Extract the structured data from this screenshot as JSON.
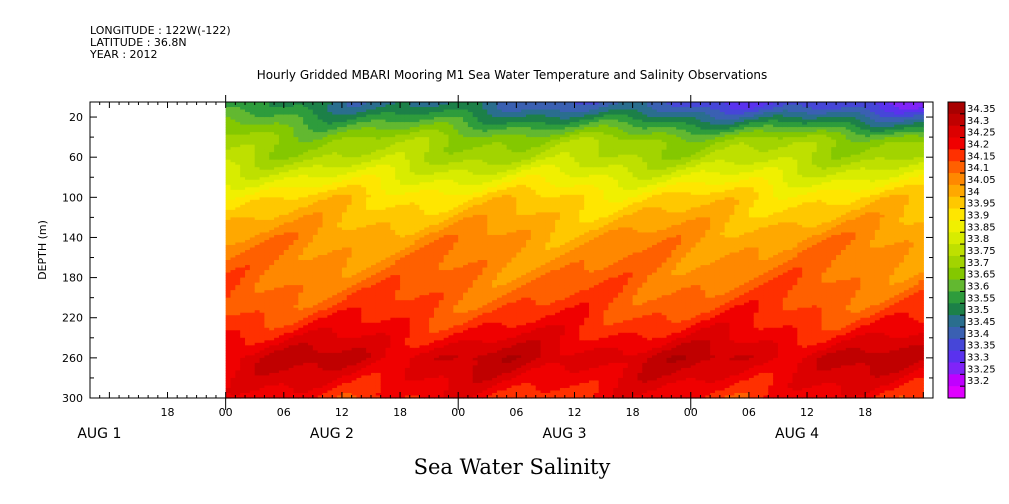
{
  "header": {
    "longitude": "LONGITUDE : 122W(-122)",
    "latitude": "LATITUDE : 36.8N",
    "year": "YEAR : 2012"
  },
  "chart_data": {
    "type": "heatmap",
    "title": "Hourly Gridded MBARI Mooring M1 Sea Water Temperature and Salinity Observations",
    "variable_title": "Sea Water Salinity",
    "ylabel": "DEPTH (m)",
    "y_ticks": [
      "20",
      "60",
      "100",
      "140",
      "180",
      "220",
      "260",
      "300"
    ],
    "y_tick_values": [
      20,
      60,
      100,
      140,
      180,
      220,
      260,
      300
    ],
    "ylim": [
      5,
      300
    ],
    "y_inverted": true,
    "x_hour_ticks": [
      "18",
      "00",
      "06",
      "12",
      "18",
      "00",
      "06",
      "12",
      "18",
      "00",
      "06",
      "12",
      "18"
    ],
    "x_hour_values": [
      -6,
      0,
      6,
      12,
      18,
      24,
      30,
      36,
      42,
      48,
      54,
      60,
      66
    ],
    "x_day_labels": [
      "AUG  1",
      "AUG  2",
      "AUG  3",
      "AUG  4"
    ],
    "x_day_values": [
      -12,
      12,
      36,
      60
    ],
    "xlim_hours": [
      -14,
      73
    ],
    "data_start_hours": 0,
    "data_end_hours": 72,
    "colorbar": {
      "labels": [
        "34.35",
        "34.3",
        "34.25",
        "34.2",
        "34.15",
        "34.1",
        "34.05",
        "34",
        "33.95",
        "33.9",
        "33.85",
        "33.8",
        "33.75",
        "33.7",
        "33.65",
        "33.6",
        "33.55",
        "33.5",
        "33.45",
        "33.4",
        "33.35",
        "33.3",
        "33.25",
        "33.2"
      ],
      "colors": [
        "#a80000",
        "#c00000",
        "#dc0000",
        "#f00000",
        "#ff3000",
        "#ff6000",
        "#ff8800",
        "#ffa800",
        "#ffc800",
        "#ffe600",
        "#f0f000",
        "#d8ec00",
        "#bee000",
        "#a2d400",
        "#84c800",
        "#62b830",
        "#2e9c3c",
        "#1c8048",
        "#2a6e8e",
        "#3a60b2",
        "#4646d8",
        "#5a32ee",
        "#8024f8",
        "#c000ff",
        "#e000ff"
      ]
    },
    "depth_profile": [
      {
        "depth": 10,
        "value": 33.55
      },
      {
        "depth": 20,
        "value": 33.6
      },
      {
        "depth": 40,
        "value": 33.7
      },
      {
        "depth": 60,
        "value": 33.75
      },
      {
        "depth": 80,
        "value": 33.85
      },
      {
        "depth": 100,
        "value": 33.95
      },
      {
        "depth": 120,
        "value": 34.0
      },
      {
        "depth": 140,
        "value": 34.05
      },
      {
        "depth": 180,
        "value": 34.1
      },
      {
        "depth": 210,
        "value": 34.15
      },
      {
        "depth": 230,
        "value": 34.2
      },
      {
        "depth": 260,
        "value": 34.3
      },
      {
        "depth": 280,
        "value": 34.25
      },
      {
        "depth": 300,
        "value": 34.2
      }
    ]
  }
}
